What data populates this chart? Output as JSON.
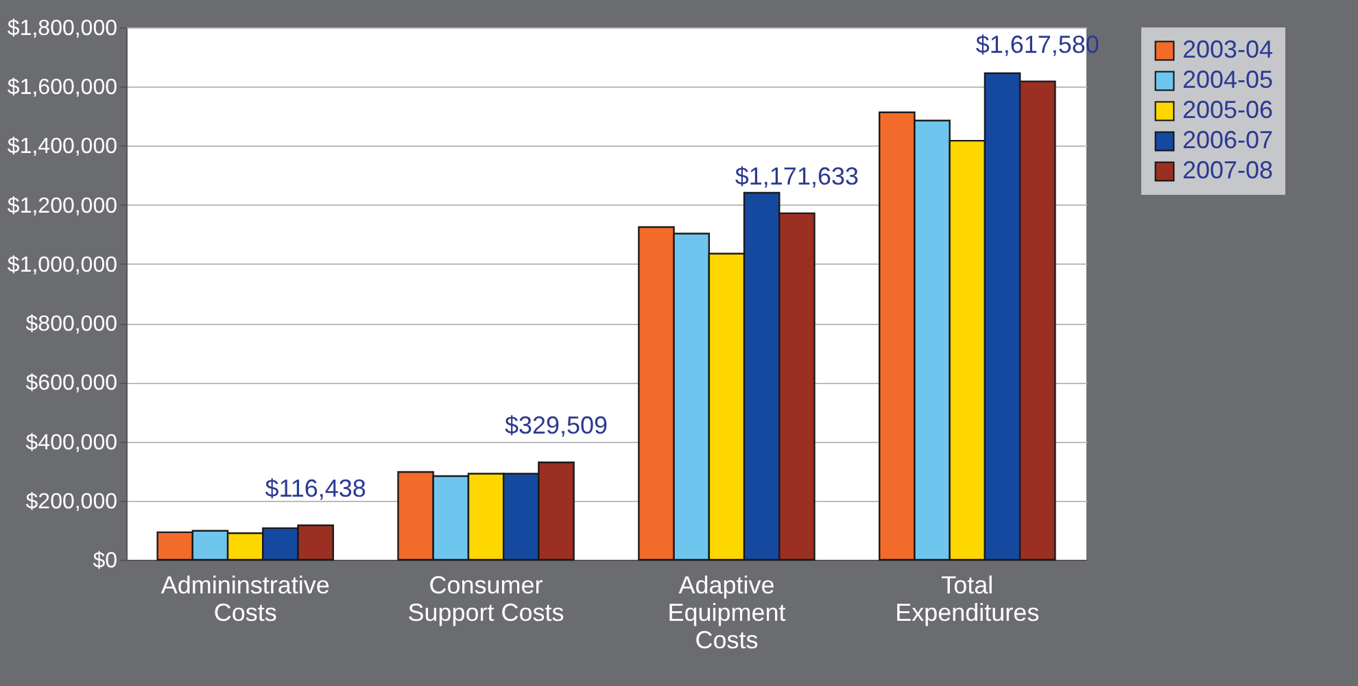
{
  "chart_data": {
    "type": "bar",
    "categories": [
      "Admininstrative Costs",
      "Consumer Support Costs",
      "Adaptive Equipment Costs",
      "Total Expenditures"
    ],
    "series": [
      {
        "name": "2003-04",
        "color": "#f26b2b",
        "values": [
          93000,
          297000,
          1125000,
          1513000
        ]
      },
      {
        "name": "2004-05",
        "color": "#6ec6ee",
        "values": [
          98000,
          283000,
          1103000,
          1485000
        ]
      },
      {
        "name": "2005-06",
        "color": "#ffd700",
        "values": [
          90000,
          291000,
          1035000,
          1417000
        ]
      },
      {
        "name": "2006-07",
        "color": "#1549a0",
        "values": [
          107000,
          291000,
          1241000,
          1645000
        ]
      },
      {
        "name": "2007-08",
        "color": "#9b2f22",
        "values": [
          116438,
          329509,
          1171633,
          1617580
        ],
        "value_labels": [
          "$116,438",
          "$329,509",
          "$1,171,633",
          "$1,617,580"
        ]
      }
    ],
    "ylim": [
      0,
      1800000
    ],
    "yticks": [
      {
        "value": 0,
        "label": "$0"
      },
      {
        "value": 200000,
        "label": "$200,000"
      },
      {
        "value": 400000,
        "label": "$400,000"
      },
      {
        "value": 600000,
        "label": "$600,000"
      },
      {
        "value": 800000,
        "label": "$800,000"
      },
      {
        "value": 1000000,
        "label": "$1,000,000"
      },
      {
        "value": 1200000,
        "label": "$1,200,000"
      },
      {
        "value": 1400000,
        "label": "$1,400,000"
      },
      {
        "value": 1600000,
        "label": "$1,600,000"
      },
      {
        "value": 1800000,
        "label": "$1,800,000"
      }
    ],
    "grid": "y",
    "legend": "right"
  }
}
